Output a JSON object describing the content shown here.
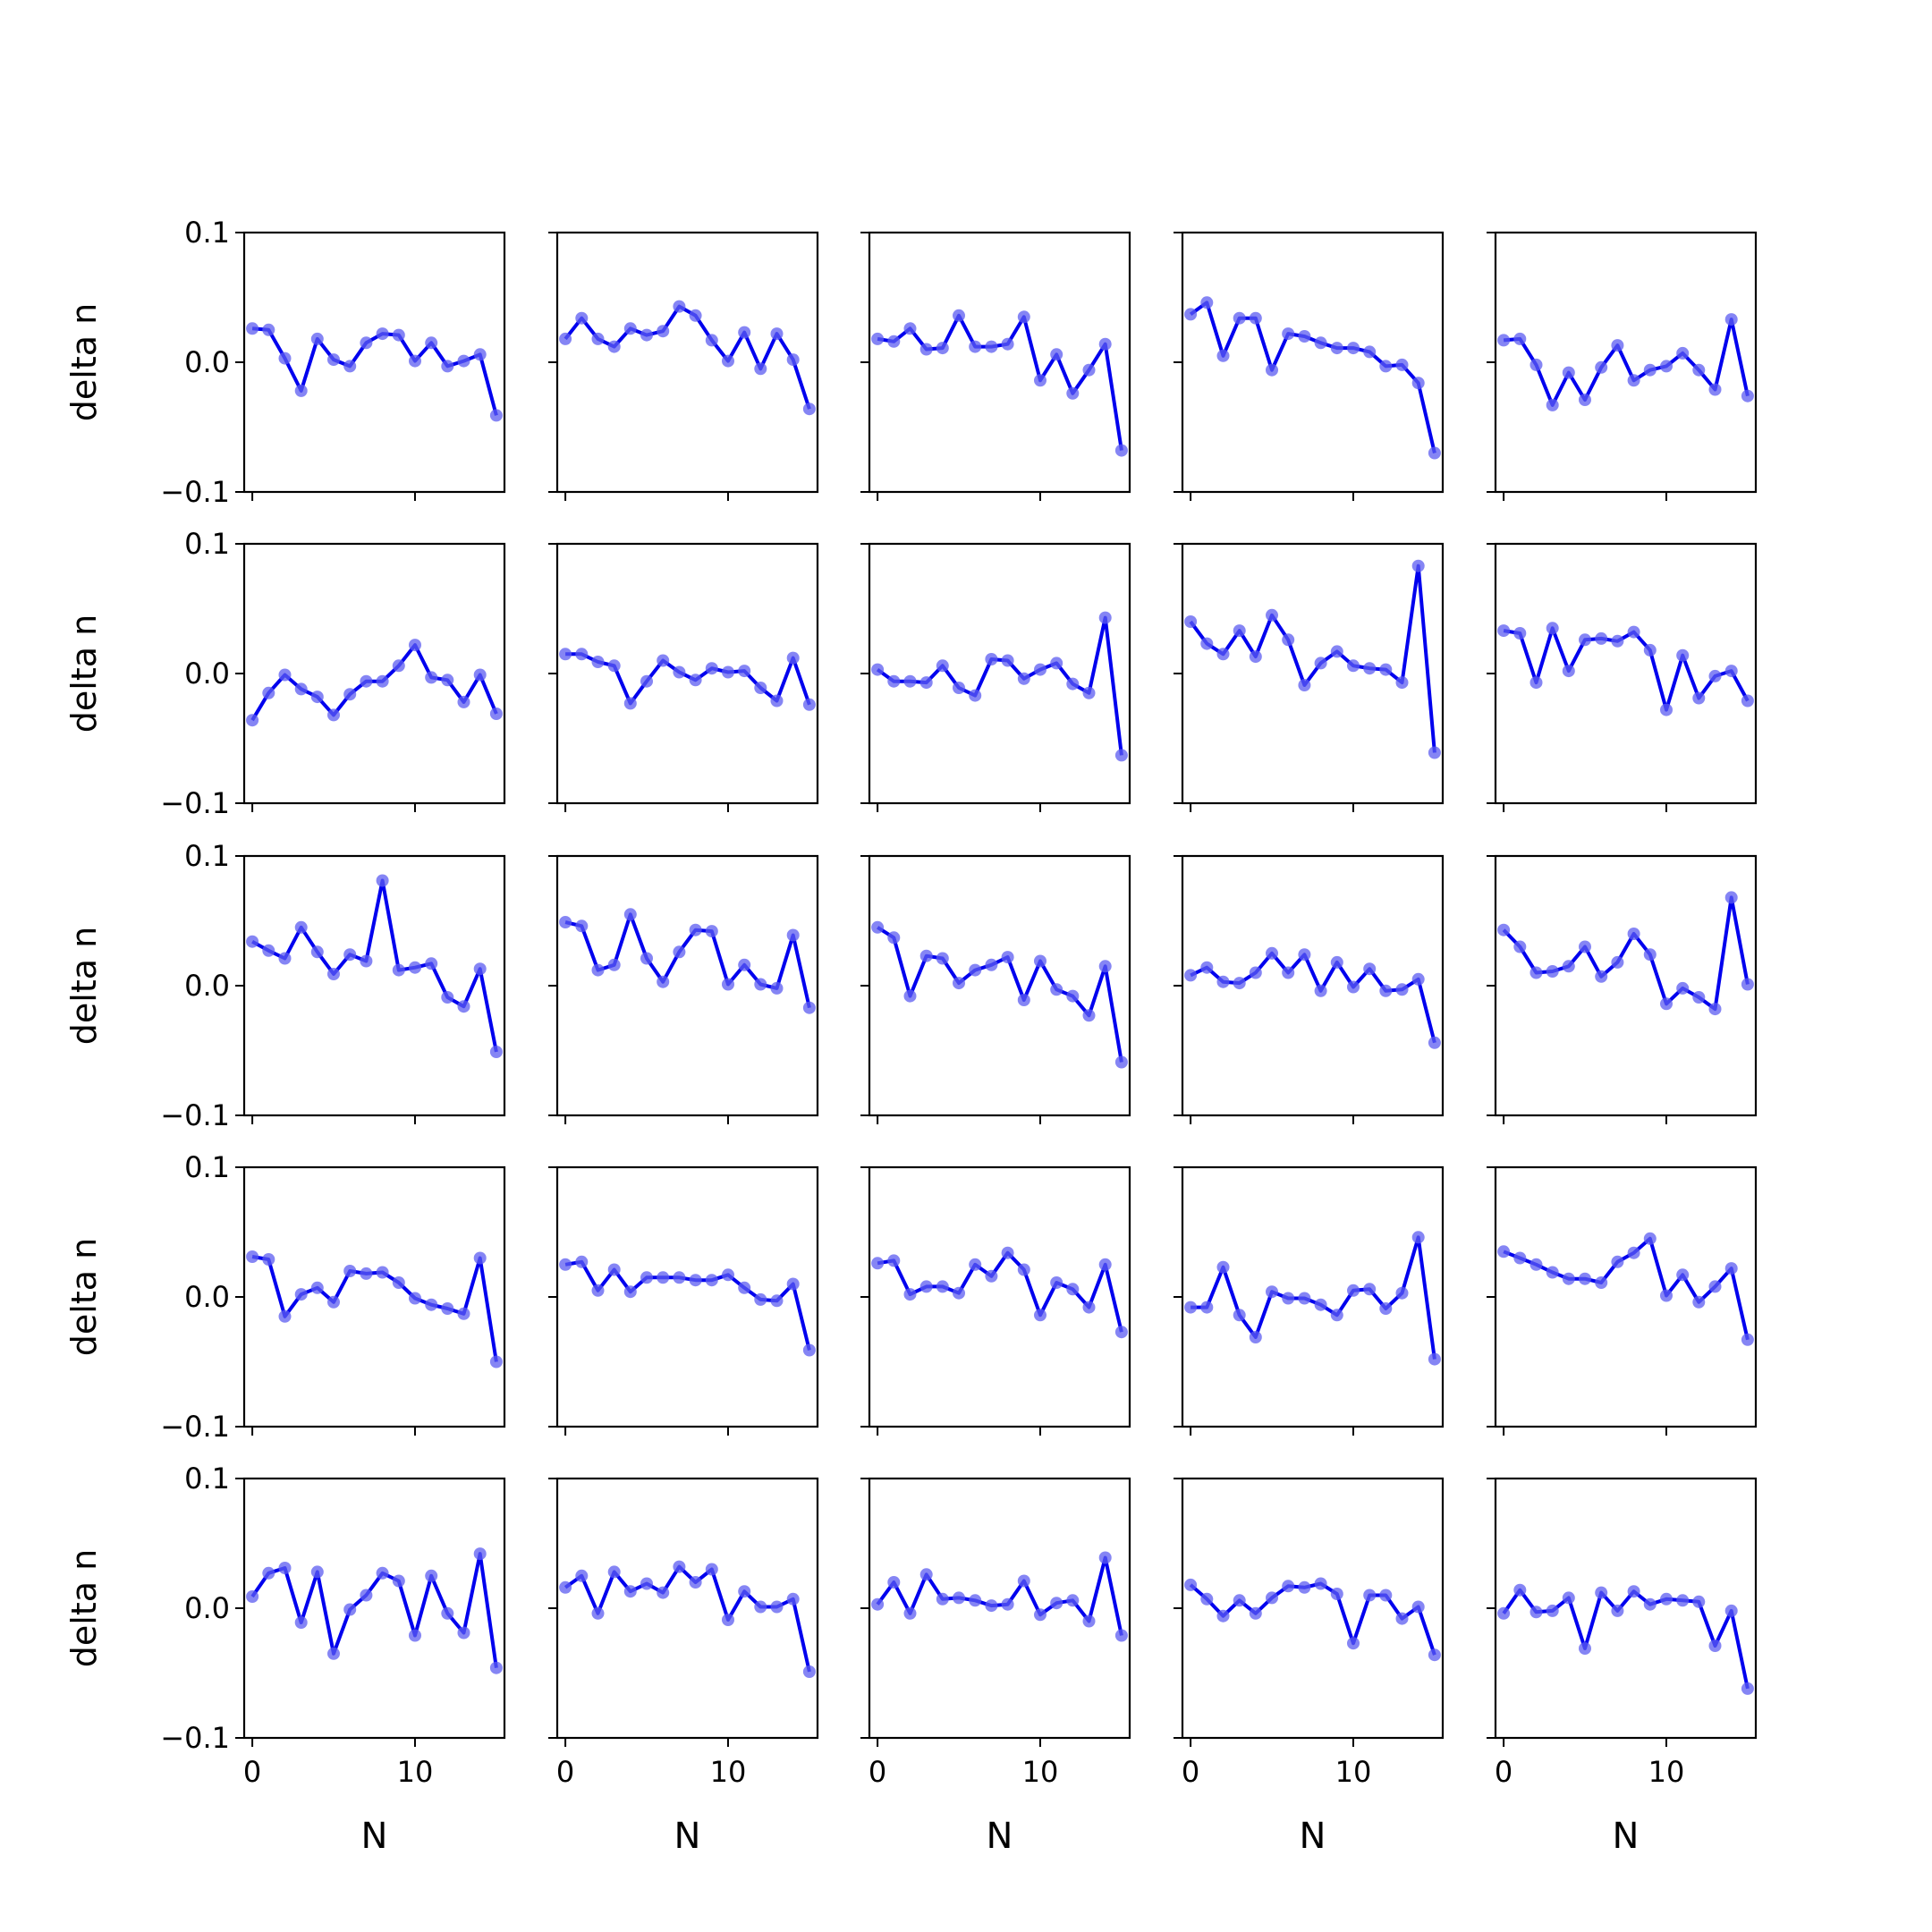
{
  "figure": {
    "ylabel": "delta n",
    "xlabel": "N",
    "line_color": "#0000ee",
    "marker_color": "#5c5cf0"
  },
  "chart_data": {
    "type": "line",
    "layout": "5x5 grid of small multiples",
    "shared_axes": true,
    "x": [
      0,
      1,
      2,
      3,
      4,
      5,
      6,
      7,
      8,
      9,
      10,
      11,
      12,
      13,
      14,
      15
    ],
    "xlim": [
      -0.5,
      15.5
    ],
    "ylim": [
      -0.1,
      0.1
    ],
    "xticks": [
      0,
      10
    ],
    "yticks": [
      -0.1,
      0.0,
      0.1
    ],
    "xtick_labels": [
      "0",
      "10"
    ],
    "ytick_labels": [
      "−0.1",
      "0.0",
      "0.1"
    ],
    "xlabel": "N",
    "ylabel": "delta n",
    "grid": false,
    "panels": [
      {
        "y": [
          0.026,
          0.025,
          0.003,
          -0.022,
          0.018,
          0.002,
          -0.003,
          0.015,
          0.022,
          0.021,
          0.001,
          0.015,
          -0.003,
          0.001,
          0.006,
          -0.041
        ]
      },
      {
        "y": [
          0.018,
          0.034,
          0.018,
          0.012,
          0.026,
          0.021,
          0.024,
          0.043,
          0.036,
          0.017,
          0.001,
          0.023,
          -0.005,
          0.022,
          0.002,
          -0.036
        ]
      },
      {
        "y": [
          0.018,
          0.016,
          0.026,
          0.01,
          0.011,
          0.036,
          0.012,
          0.012,
          0.014,
          0.035,
          -0.014,
          0.006,
          -0.024,
          -0.006,
          0.014,
          -0.068
        ]
      },
      {
        "y": [
          0.037,
          0.046,
          0.005,
          0.034,
          0.034,
          -0.006,
          0.022,
          0.02,
          0.015,
          0.011,
          0.011,
          0.008,
          -0.003,
          -0.002,
          -0.016,
          -0.07
        ]
      },
      {
        "y": [
          0.017,
          0.018,
          -0.002,
          -0.033,
          -0.008,
          -0.029,
          -0.004,
          0.013,
          -0.014,
          -0.006,
          -0.003,
          0.007,
          -0.006,
          -0.021,
          0.033,
          -0.026
        ]
      },
      {
        "y": [
          -0.036,
          -0.015,
          -0.001,
          -0.012,
          -0.018,
          -0.032,
          -0.016,
          -0.006,
          -0.006,
          0.006,
          0.022,
          -0.003,
          -0.005,
          -0.022,
          -0.001,
          -0.031
        ]
      },
      {
        "y": [
          0.015,
          0.015,
          0.009,
          0.006,
          -0.023,
          -0.006,
          0.01,
          0.001,
          -0.005,
          0.004,
          0.001,
          0.002,
          -0.011,
          -0.021,
          0.012,
          -0.024
        ]
      },
      {
        "y": [
          0.003,
          -0.006,
          -0.006,
          -0.007,
          0.006,
          -0.011,
          -0.017,
          0.011,
          0.01,
          -0.004,
          0.003,
          0.008,
          -0.008,
          -0.015,
          0.043,
          -0.063
        ]
      },
      {
        "y": [
          0.04,
          0.023,
          0.015,
          0.033,
          0.013,
          0.045,
          0.026,
          -0.009,
          0.008,
          0.017,
          0.006,
          0.004,
          0.003,
          -0.007,
          0.083,
          -0.061
        ]
      },
      {
        "y": [
          0.033,
          0.031,
          -0.007,
          0.035,
          0.002,
          0.026,
          0.027,
          0.025,
          0.032,
          0.018,
          -0.028,
          0.014,
          -0.019,
          -0.002,
          0.002,
          -0.021
        ]
      },
      {
        "y": [
          0.034,
          0.027,
          0.021,
          0.045,
          0.026,
          0.009,
          0.024,
          0.019,
          0.081,
          0.012,
          0.014,
          0.017,
          -0.009,
          -0.016,
          0.013,
          -0.051
        ]
      },
      {
        "y": [
          0.049,
          0.046,
          0.012,
          0.016,
          0.055,
          0.021,
          0.003,
          0.026,
          0.043,
          0.042,
          0.001,
          0.016,
          0.001,
          -0.002,
          0.039,
          -0.017
        ]
      },
      {
        "y": [
          0.045,
          0.037,
          -0.008,
          0.023,
          0.021,
          0.002,
          0.012,
          0.016,
          0.022,
          -0.011,
          0.019,
          -0.003,
          -0.008,
          -0.023,
          0.015,
          -0.059
        ]
      },
      {
        "y": [
          0.008,
          0.014,
          0.003,
          0.002,
          0.01,
          0.025,
          0.01,
          0.024,
          -0.004,
          0.018,
          -0.001,
          0.013,
          -0.004,
          -0.003,
          0.005,
          -0.044
        ]
      },
      {
        "y": [
          0.043,
          0.03,
          0.01,
          0.011,
          0.015,
          0.03,
          0.007,
          0.018,
          0.04,
          0.024,
          -0.014,
          -0.002,
          -0.009,
          -0.018,
          0.068,
          0.001
        ]
      },
      {
        "y": [
          0.031,
          0.029,
          -0.015,
          0.002,
          0.007,
          -0.004,
          0.02,
          0.018,
          0.019,
          0.011,
          -0.001,
          -0.006,
          -0.009,
          -0.013,
          0.03,
          -0.05
        ]
      },
      {
        "y": [
          0.025,
          0.027,
          0.005,
          0.021,
          0.004,
          0.015,
          0.015,
          0.015,
          0.013,
          0.013,
          0.017,
          0.007,
          -0.002,
          -0.003,
          0.01,
          -0.041
        ]
      },
      {
        "y": [
          0.026,
          0.028,
          0.002,
          0.008,
          0.008,
          0.003,
          0.025,
          0.016,
          0.034,
          0.021,
          -0.014,
          0.011,
          0.006,
          -0.008,
          0.025,
          -0.027
        ]
      },
      {
        "y": [
          -0.008,
          -0.008,
          0.023,
          -0.014,
          -0.031,
          0.004,
          -0.001,
          -0.001,
          -0.006,
          -0.014,
          0.005,
          0.006,
          -0.009,
          0.003,
          0.046,
          -0.048
        ]
      },
      {
        "y": [
          0.035,
          0.03,
          0.025,
          0.019,
          0.014,
          0.014,
          0.011,
          0.027,
          0.034,
          0.045,
          0.001,
          0.017,
          -0.004,
          0.008,
          0.022,
          -0.033
        ]
      },
      {
        "y": [
          0.009,
          0.027,
          0.031,
          -0.011,
          0.028,
          -0.035,
          -0.001,
          0.01,
          0.027,
          0.021,
          -0.021,
          0.025,
          -0.004,
          -0.019,
          0.042,
          -0.046
        ]
      },
      {
        "y": [
          0.016,
          0.025,
          -0.004,
          0.028,
          0.013,
          0.019,
          0.012,
          0.032,
          0.02,
          0.03,
          -0.009,
          0.013,
          0.001,
          0.001,
          0.007,
          -0.049
        ]
      },
      {
        "y": [
          0.003,
          0.02,
          -0.004,
          0.026,
          0.007,
          0.008,
          0.006,
          0.002,
          0.003,
          0.021,
          -0.005,
          0.004,
          0.006,
          -0.01,
          0.039,
          -0.021
        ]
      },
      {
        "y": [
          0.018,
          0.007,
          -0.006,
          0.006,
          -0.004,
          0.008,
          0.017,
          0.016,
          0.019,
          0.011,
          -0.027,
          0.01,
          0.01,
          -0.008,
          0.001,
          -0.036
        ]
      },
      {
        "y": [
          -0.004,
          0.014,
          -0.003,
          -0.002,
          0.008,
          -0.031,
          0.012,
          -0.002,
          0.013,
          0.003,
          0.007,
          0.006,
          0.005,
          -0.029,
          -0.002,
          -0.062
        ]
      }
    ]
  }
}
